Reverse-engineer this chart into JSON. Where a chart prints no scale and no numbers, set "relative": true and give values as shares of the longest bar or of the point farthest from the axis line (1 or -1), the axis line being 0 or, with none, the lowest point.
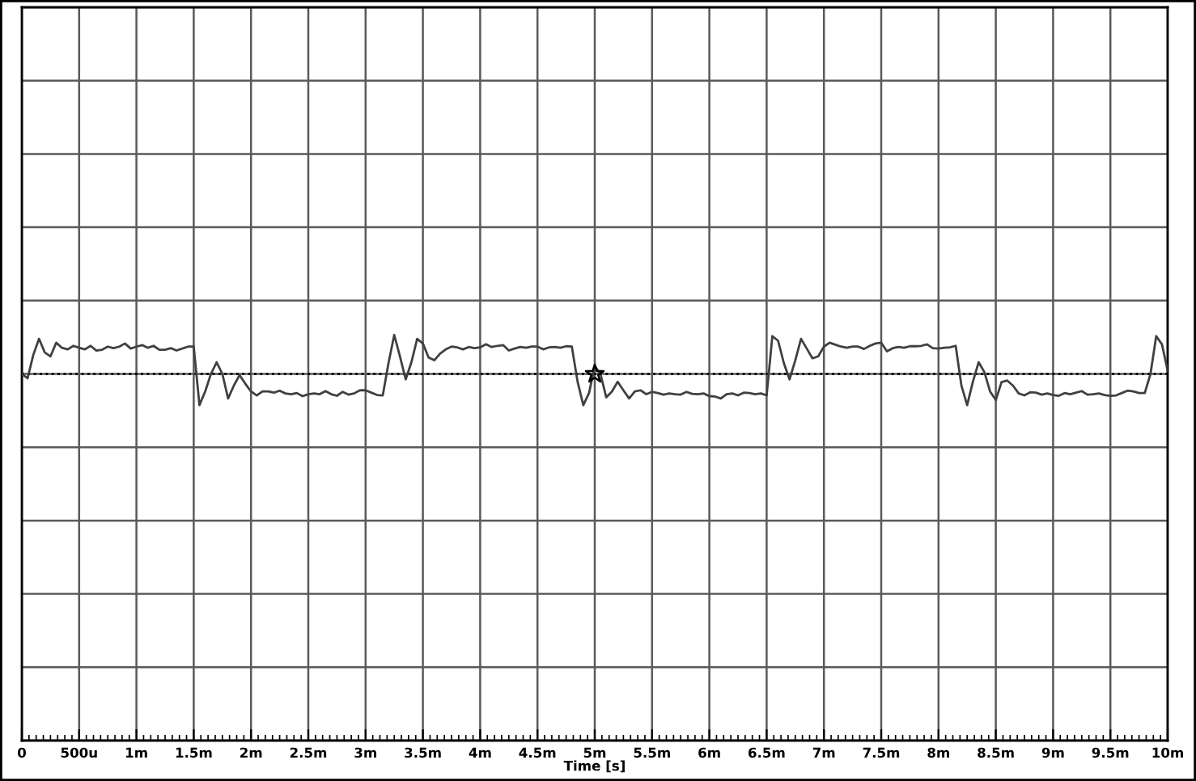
{
  "chart_data": {
    "type": "line",
    "xlabel": "Time [s]",
    "relative": true,
    "grid": true,
    "tick_labels": "x",
    "categories": [
      "0",
      null,
      null,
      null,
      null,
      null,
      null,
      null,
      null,
      null,
      "500u",
      null,
      null,
      null,
      null,
      null,
      null,
      null,
      null,
      null,
      "1m",
      null,
      null,
      null,
      null,
      null,
      null,
      null,
      null,
      null,
      "1.5m",
      null,
      null,
      null,
      null,
      null,
      null,
      null,
      null,
      null,
      "2m",
      null,
      null,
      null,
      null,
      null,
      null,
      null,
      null,
      null,
      "2.5m",
      null,
      null,
      null,
      null,
      null,
      null,
      null,
      null,
      null,
      "3m",
      null,
      null,
      null,
      null,
      null,
      null,
      null,
      null,
      null,
      "3.5m",
      null,
      null,
      null,
      null,
      null,
      null,
      null,
      null,
      null,
      "4m",
      null,
      null,
      null,
      null,
      null,
      null,
      null,
      null,
      null,
      "4.5m",
      null,
      null,
      null,
      null,
      null,
      null,
      null,
      null,
      null,
      "5m",
      null,
      null,
      null,
      null,
      null,
      null,
      null,
      null,
      null,
      "5.5m",
      null,
      null,
      null,
      null,
      null,
      null,
      null,
      null,
      null,
      "6m",
      null,
      null,
      null,
      null,
      null,
      null,
      null,
      null,
      null,
      "6.5m",
      null,
      null,
      null,
      null,
      null,
      null,
      null,
      null,
      null,
      "7m",
      null,
      null,
      null,
      null,
      null,
      null,
      null,
      null,
      null,
      "7.5m",
      null,
      null,
      null,
      null,
      null,
      null,
      null,
      null,
      null,
      "8m",
      null,
      null,
      null,
      null,
      null,
      null,
      null,
      null,
      null,
      "8.5m",
      null,
      null,
      null,
      null,
      null,
      null,
      null,
      null,
      null,
      "9m",
      null,
      null,
      null,
      null,
      null,
      null,
      null,
      null,
      null,
      "9.5m",
      null,
      null,
      null,
      null,
      null,
      null,
      null,
      null,
      null,
      "10m"
    ],
    "ref_lines": [
      {
        "axis": "y",
        "value": 0,
        "line_style": "dotted",
        "color": "#000000"
      }
    ],
    "series": [
      {
        "color": "#404040",
        "line_style": "solid",
        "values": [
          0,
          -0.11,
          0.49,
          0.9,
          0.55,
          0.45,
          0.8,
          0.67,
          0.63,
          0.72,
          0.67,
          0.63,
          0.72,
          0.6,
          0.62,
          0.7,
          0.66,
          0.7,
          0.78,
          0.65,
          0.7,
          0.74,
          0.67,
          0.72,
          0.62,
          0.62,
          0.66,
          0.6,
          0.65,
          0.7,
          0.7,
          -0.8,
          -0.45,
          0,
          0.3,
          0,
          -0.63,
          -0.3,
          -0.03,
          -0.25,
          -0.45,
          -0.55,
          -0.45,
          -0.45,
          -0.48,
          -0.43,
          -0.5,
          -0.52,
          -0.49,
          -0.57,
          -0.52,
          -0.5,
          -0.52,
          -0.44,
          -0.52,
          -0.56,
          -0.46,
          -0.53,
          -0.5,
          -0.42,
          -0.42,
          -0.48,
          -0.54,
          -0.55,
          0.28,
          1,
          0.45,
          -0.14,
          0.3,
          0.9,
          0.78,
          0.42,
          0.35,
          0.52,
          0.63,
          0.7,
          0.68,
          0.63,
          0.69,
          0.66,
          0.68,
          0.76,
          0.69,
          0.72,
          0.74,
          0.6,
          0.65,
          0.69,
          0.67,
          0.7,
          0.7,
          0.63,
          0.68,
          0.69,
          0.67,
          0.71,
          0.7,
          -0.2,
          -0.8,
          -0.49,
          0.2,
          0,
          -0.6,
          -0.45,
          -0.2,
          -0.42,
          -0.63,
          -0.45,
          -0.42,
          -0.52,
          -0.46,
          -0.49,
          -0.53,
          -0.5,
          -0.52,
          -0.53,
          -0.46,
          -0.51,
          -0.52,
          -0.5,
          -0.57,
          -0.58,
          -0.63,
          -0.52,
          -0.5,
          -0.55,
          -0.48,
          -0.49,
          -0.52,
          -0.5,
          -0.55,
          0.97,
          0.85,
          0.28,
          -0.14,
          0.35,
          0.9,
          0.65,
          0.4,
          0.45,
          0.7,
          0.8,
          0.75,
          0.7,
          0.67,
          0.7,
          0.7,
          0.64,
          0.72,
          0.78,
          0.8,
          0.58,
          0.66,
          0.69,
          0.67,
          0.71,
          0.71,
          0.72,
          0.76,
          0.66,
          0.65,
          0.67,
          0.68,
          0.72,
          -0.3,
          -0.8,
          -0.2,
          0.3,
          0.05,
          -0.45,
          -0.67,
          -0.21,
          -0.17,
          -0.3,
          -0.5,
          -0.55,
          -0.47,
          -0.48,
          -0.53,
          -0.5,
          -0.54,
          -0.56,
          -0.49,
          -0.52,
          -0.48,
          -0.44,
          -0.53,
          -0.52,
          -0.5,
          -0.54,
          -0.56,
          -0.55,
          -0.49,
          -0.43,
          -0.45,
          -0.49,
          -0.49,
          0,
          0.97,
          0.76,
          0.08
        ]
      },
      {
        "type": "scatter",
        "color": "#000000",
        "marker": "star",
        "values": [
          null,
          null,
          null,
          null,
          null,
          null,
          null,
          null,
          null,
          null,
          null,
          null,
          null,
          null,
          null,
          null,
          null,
          null,
          null,
          null,
          null,
          null,
          null,
          null,
          null,
          null,
          null,
          null,
          null,
          null,
          null,
          null,
          null,
          null,
          null,
          null,
          null,
          null,
          null,
          null,
          null,
          null,
          null,
          null,
          null,
          null,
          null,
          null,
          null,
          null,
          null,
          null,
          null,
          null,
          null,
          null,
          null,
          null,
          null,
          null,
          null,
          null,
          null,
          null,
          null,
          null,
          null,
          null,
          null,
          null,
          null,
          null,
          null,
          null,
          null,
          null,
          null,
          null,
          null,
          null,
          null,
          null,
          null,
          null,
          null,
          null,
          null,
          null,
          null,
          null,
          null,
          null,
          null,
          null,
          null,
          null,
          null,
          null,
          null,
          null,
          0,
          null,
          null,
          null,
          null,
          null,
          null,
          null,
          null,
          null,
          null,
          null,
          null,
          null,
          null,
          null,
          null,
          null,
          null,
          null,
          null,
          null,
          null,
          null,
          null,
          null,
          null,
          null,
          null,
          null,
          null,
          null,
          null,
          null,
          null,
          null,
          null,
          null,
          null,
          null,
          null,
          null,
          null,
          null,
          null,
          null,
          null,
          null,
          null,
          null,
          null,
          null,
          null,
          null,
          null,
          null,
          null,
          null,
          null,
          null,
          null,
          null,
          null,
          null,
          null,
          null,
          null,
          null,
          null,
          null,
          null,
          null,
          null,
          null,
          null,
          null,
          null,
          null,
          null,
          null,
          null,
          null,
          null,
          null,
          null,
          null,
          null,
          null,
          null,
          null,
          null,
          null,
          null,
          null,
          null,
          null,
          null,
          null,
          null,
          null,
          null
        ]
      }
    ]
  }
}
